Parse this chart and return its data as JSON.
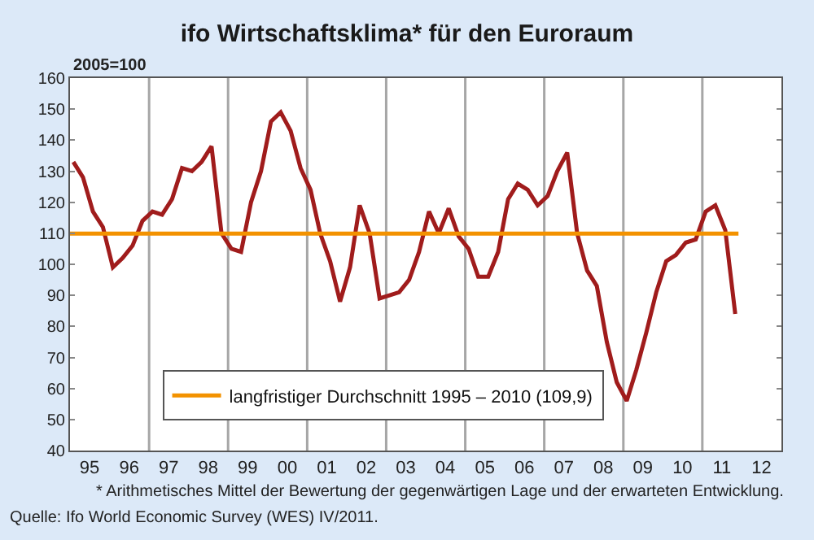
{
  "chart_data": {
    "type": "line",
    "title": "ifo Wirtschaftsklima* für den Euroraum",
    "ylabel": "2005=100",
    "annotations": [
      "* Arithmetisches Mittel der Bewertung der gegenwärtigen Lage und der erwarteten Entwicklung.",
      "Quelle: Ifo World Economic Survey (WES) IV/2011."
    ],
    "x": [
      "1995-02",
      "1995-05",
      "1995-08",
      "1995-11",
      "1996-02",
      "1996-05",
      "1996-08",
      "1996-11",
      "1997-02",
      "1997-05",
      "1997-08",
      "1997-11",
      "1998-02",
      "1998-05",
      "1998-08",
      "1998-11",
      "1999-02",
      "1999-05",
      "1999-08",
      "1999-11",
      "2000-02",
      "2000-05",
      "2000-08",
      "2000-11",
      "2001-02",
      "2001-05",
      "2001-08",
      "2001-11",
      "2002-02",
      "2002-05",
      "2002-08",
      "2002-11",
      "2003-02",
      "2003-05",
      "2003-08",
      "2003-11",
      "2004-02",
      "2004-05",
      "2004-08",
      "2004-11",
      "2005-02",
      "2005-05",
      "2005-08",
      "2005-11",
      "2006-02",
      "2006-05",
      "2006-08",
      "2006-11",
      "2007-02",
      "2007-05",
      "2007-08",
      "2007-11",
      "2008-02",
      "2008-05",
      "2008-08",
      "2008-11",
      "2009-02",
      "2009-05",
      "2009-08",
      "2009-11",
      "2010-02",
      "2010-05",
      "2010-08",
      "2010-11",
      "2011-02",
      "2011-05",
      "2011-08",
      "2011-11"
    ],
    "series": [
      {
        "color": "#a01c1c",
        "values": [
          133,
          128,
          117,
          112,
          99,
          102,
          106,
          114,
          117,
          116,
          121,
          131,
          130,
          133,
          138,
          110,
          105,
          104,
          120,
          130,
          146,
          149,
          143,
          131,
          124,
          110,
          101,
          88,
          99,
          119,
          110,
          89,
          90,
          91,
          95,
          104,
          117,
          110,
          118,
          109,
          105,
          96,
          96,
          104,
          121,
          126,
          124,
          119,
          122,
          130,
          136,
          110,
          98,
          93,
          75,
          62,
          56,
          66,
          78,
          91,
          101,
          103,
          107,
          108,
          117,
          119,
          111,
          84
        ],
        "line_style": "solid",
        "marker": "none"
      },
      {
        "name": "langfristiger Durchschnitt 1995 – 2010 (109,9)",
        "color": "#f39200",
        "x": [
          "1995-01",
          "2011-12"
        ],
        "values": [
          109.9,
          109.9
        ],
        "line_style": "solid",
        "marker": "none"
      }
    ],
    "ref_lines": [
      {
        "axis": "x",
        "value": "1997-01",
        "color": "#a6a6a6"
      },
      {
        "axis": "x",
        "value": "1999-01",
        "color": "#a6a6a6"
      },
      {
        "axis": "x",
        "value": "2001-01",
        "color": "#a6a6a6"
      },
      {
        "axis": "x",
        "value": "2003-01",
        "color": "#a6a6a6"
      },
      {
        "axis": "x",
        "value": "2005-01",
        "color": "#a6a6a6"
      },
      {
        "axis": "x",
        "value": "2007-01",
        "color": "#a6a6a6"
      },
      {
        "axis": "x",
        "value": "2009-01",
        "color": "#a6a6a6"
      },
      {
        "axis": "x",
        "value": "2011-01",
        "color": "#a6a6a6"
      }
    ],
    "xlim": [
      "1995-01",
      "2013-01"
    ],
    "xticks": [
      {
        "value": "1995-07",
        "label": "95"
      },
      {
        "value": "1996-07",
        "label": "96"
      },
      {
        "value": "1997-07",
        "label": "97"
      },
      {
        "value": "1998-07",
        "label": "98"
      },
      {
        "value": "1999-07",
        "label": "99"
      },
      {
        "value": "2000-07",
        "label": "00"
      },
      {
        "value": "2001-07",
        "label": "01"
      },
      {
        "value": "2002-07",
        "label": "02"
      },
      {
        "value": "2003-07",
        "label": "03"
      },
      {
        "value": "2004-07",
        "label": "04"
      },
      {
        "value": "2005-07",
        "label": "05"
      },
      {
        "value": "2006-07",
        "label": "06"
      },
      {
        "value": "2007-07",
        "label": "07"
      },
      {
        "value": "2008-07",
        "label": "08"
      },
      {
        "value": "2009-07",
        "label": "09"
      },
      {
        "value": "2010-07",
        "label": "10"
      },
      {
        "value": "2011-07",
        "label": "11"
      },
      {
        "value": "2012-07",
        "label": "12"
      }
    ],
    "ylim": [
      40,
      160
    ],
    "yticks": [
      40,
      50,
      60,
      70,
      80,
      90,
      100,
      110,
      120,
      130,
      140,
      150,
      160
    ],
    "grid": false,
    "legend": "bottom"
  }
}
